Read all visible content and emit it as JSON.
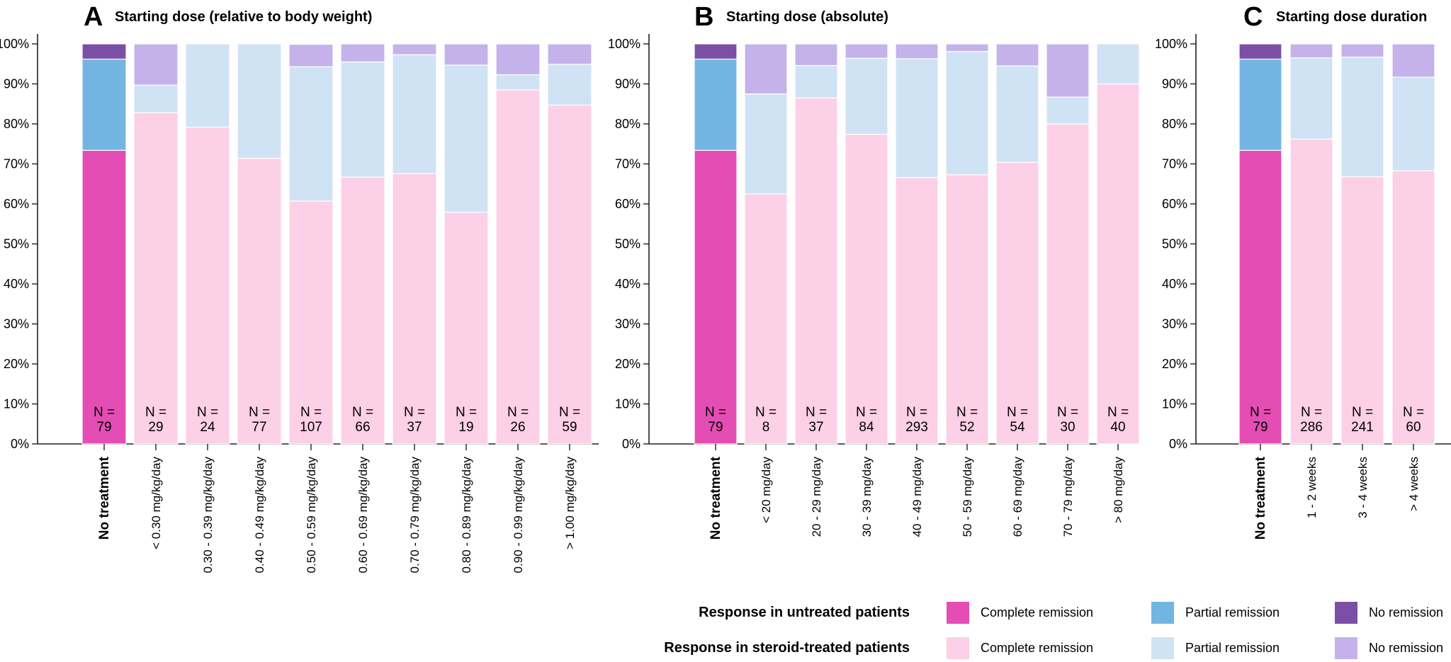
{
  "colors": {
    "untreated": {
      "complete": "#e44eb4",
      "partial": "#72b5e3",
      "none": "#7c4fa6"
    },
    "treated": {
      "complete": "#fcd0e6",
      "partial": "#cfe3f4",
      "none": "#c5b2ea"
    }
  },
  "chart_data": [
    {
      "type": "bar",
      "stacked": true,
      "panel_letter": "A",
      "title": "Starting dose (relative to body weight)",
      "ylim": [
        0,
        100
      ],
      "yticks": [
        "0%",
        "10%",
        "20%",
        "30%",
        "40%",
        "50%",
        "60%",
        "70%",
        "80%",
        "90%",
        "100%"
      ],
      "categories": [
        "No treatment",
        "< 0.30 mg/kg/day",
        "0.30 - 0.39 mg/kg/day",
        "0.40 - 0.49 mg/kg/day",
        "0.50 - 0.59 mg/kg/day",
        "0.60 - 0.69 mg/kg/day",
        "0.70 - 0.79 mg/kg/day",
        "0.80 - 0.89 mg/kg/day",
        "0.90 - 0.99 mg/kg/day",
        "> 1.00 mg/kg/day"
      ],
      "n_label": "N =",
      "n": [
        "79",
        "29",
        "24",
        "77",
        "107",
        "66",
        "37",
        "19",
        "26",
        "59"
      ],
      "series": [
        {
          "name": "Complete remission",
          "values": [
            73.4,
            82.8,
            79.2,
            71.4,
            60.7,
            66.7,
            67.6,
            57.9,
            88.5,
            84.7
          ]
        },
        {
          "name": "Partial remission",
          "values": [
            22.8,
            6.9,
            20.8,
            28.6,
            33.6,
            28.8,
            29.7,
            36.8,
            3.8,
            10.2
          ]
        },
        {
          "name": "No remission",
          "values": [
            3.8,
            10.3,
            0.0,
            0.0,
            5.6,
            4.5,
            2.7,
            5.3,
            7.7,
            5.1
          ]
        }
      ]
    },
    {
      "type": "bar",
      "stacked": true,
      "panel_letter": "B",
      "title": "Starting dose (absolute)",
      "ylim": [
        0,
        100
      ],
      "yticks": [
        "0%",
        "10%",
        "20%",
        "30%",
        "40%",
        "50%",
        "60%",
        "70%",
        "80%",
        "90%",
        "100%"
      ],
      "categories": [
        "No treatment",
        "< 20 mg/day",
        "20 - 29 mg/day",
        "30 - 39 mg/day",
        "40 - 49 mg/day",
        "50 - 59 mg/day",
        "60 - 69 mg/day",
        "70 - 79 mg/day",
        "> 80 mg/day"
      ],
      "n_label": "N =",
      "n": [
        "79",
        "8",
        "37",
        "84",
        "293",
        "52",
        "54",
        "30",
        "40"
      ],
      "series": [
        {
          "name": "Complete remission",
          "values": [
            73.4,
            62.5,
            86.5,
            77.4,
            66.6,
            67.3,
            70.4,
            80.0,
            90.0
          ]
        },
        {
          "name": "Partial remission",
          "values": [
            22.8,
            25.0,
            8.1,
            19.0,
            29.7,
            30.8,
            24.1,
            6.7,
            10.0
          ]
        },
        {
          "name": "No remission",
          "values": [
            3.8,
            12.5,
            5.4,
            3.6,
            3.7,
            1.9,
            5.5,
            13.3,
            0.0
          ]
        }
      ]
    },
    {
      "type": "bar",
      "stacked": true,
      "panel_letter": "C",
      "title": "Starting dose duration",
      "ylim": [
        0,
        100
      ],
      "yticks": [
        "0%",
        "10%",
        "20%",
        "30%",
        "40%",
        "50%",
        "60%",
        "70%",
        "80%",
        "90%",
        "100%"
      ],
      "categories": [
        "No treatment",
        "1 - 2 weeks",
        "3 - 4 weeks",
        "> 4 weeks"
      ],
      "n_label": "N =",
      "n": [
        "79",
        "286",
        "241",
        "60"
      ],
      "series": [
        {
          "name": "Complete remission",
          "values": [
            73.4,
            76.2,
            66.8,
            68.3
          ]
        },
        {
          "name": "Partial remission",
          "values": [
            22.8,
            20.3,
            29.9,
            23.4
          ]
        },
        {
          "name": "No remission",
          "values": [
            3.8,
            3.5,
            3.3,
            8.3
          ]
        }
      ]
    }
  ],
  "legend": {
    "rows": [
      {
        "label": "Response in untreated patients",
        "group": "untreated",
        "items": [
          {
            "label": "Complete remission",
            "key": "complete"
          },
          {
            "label": "Partial remission",
            "key": "partial"
          },
          {
            "label": "No remission",
            "key": "none"
          }
        ]
      },
      {
        "label": "Response in steroid-treated patients",
        "group": "treated",
        "items": [
          {
            "label": "Complete remission",
            "key": "complete"
          },
          {
            "label": "Partial remission",
            "key": "partial"
          },
          {
            "label": "No remission",
            "key": "none"
          }
        ]
      }
    ]
  }
}
